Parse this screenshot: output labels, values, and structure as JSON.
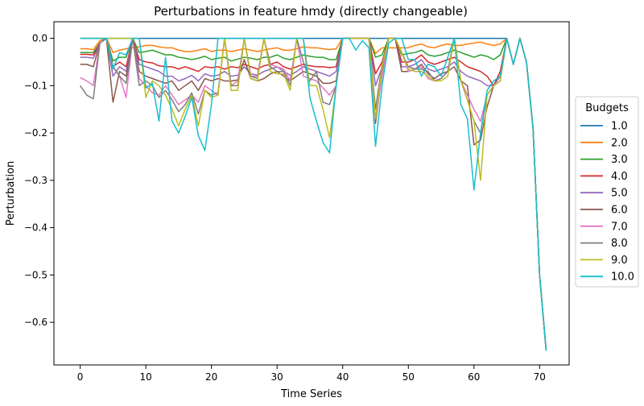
{
  "chart_data": {
    "type": "line",
    "title": "Perturbations in feature hmdy (directly changeable)",
    "xlabel": "Time Series",
    "ylabel": "Perturbation",
    "xlim": [
      -4,
      74.5
    ],
    "ylim": [
      -0.69,
      0.035
    ],
    "x_ticks": [
      0,
      10,
      20,
      30,
      40,
      50,
      60,
      70
    ],
    "y_ticks": [
      0.0,
      -0.1,
      -0.2,
      -0.3,
      -0.4,
      -0.5,
      -0.6
    ],
    "y_tick_labels": [
      "0.0",
      "−0.1",
      "−0.2",
      "−0.3",
      "−0.4",
      "−0.5",
      "−0.6"
    ],
    "grid": false,
    "legend": {
      "title": "Budgets",
      "placement": "right"
    },
    "x": [
      0,
      1,
      2,
      3,
      4,
      5,
      6,
      7,
      8,
      9,
      10,
      11,
      12,
      13,
      14,
      15,
      16,
      17,
      18,
      19,
      20,
      21,
      22,
      23,
      24,
      25,
      26,
      27,
      28,
      29,
      30,
      31,
      32,
      33,
      34,
      35,
      36,
      37,
      38,
      39,
      40,
      41,
      42,
      43,
      44,
      45,
      46,
      47,
      48,
      49,
      50,
      51,
      52,
      53,
      54,
      55,
      56,
      57,
      58,
      59,
      60,
      61,
      62,
      63,
      64,
      65,
      66,
      67,
      68,
      69,
      70,
      71
    ],
    "series": [
      {
        "name": "1.0",
        "color": "#1f77b4",
        "values": [
          0,
          0,
          0,
          0,
          0,
          0,
          0,
          0,
          0,
          0,
          0,
          0,
          0,
          0,
          0,
          0,
          0,
          0,
          0,
          0,
          0,
          0,
          0,
          0,
          0,
          0,
          0,
          0,
          0,
          0,
          0,
          0,
          0,
          0,
          0,
          0,
          0,
          0,
          0,
          0,
          0,
          0,
          0,
          0,
          0,
          0,
          0,
          0,
          0,
          0,
          0,
          0,
          0,
          0,
          0,
          0,
          0,
          0,
          0,
          0,
          0,
          0,
          0,
          0,
          0,
          0,
          -0.055,
          0,
          -0.05,
          -0.19,
          -0.5,
          -0.66
        ]
      },
      {
        "name": "2.0",
        "color": "#ff7f0e",
        "values": [
          -0.022,
          -0.022,
          -0.024,
          -0.005,
          0,
          -0.03,
          -0.025,
          -0.022,
          -0.02,
          -0.018,
          -0.015,
          -0.015,
          -0.018,
          -0.02,
          -0.02,
          -0.025,
          -0.028,
          -0.028,
          -0.025,
          -0.022,
          -0.028,
          -0.025,
          -0.025,
          -0.028,
          -0.025,
          -0.022,
          -0.025,
          -0.028,
          -0.025,
          -0.022,
          -0.02,
          -0.025,
          -0.025,
          -0.022,
          -0.018,
          -0.02,
          -0.02,
          -0.022,
          -0.024,
          -0.022,
          0,
          0,
          0,
          0,
          0,
          -0.032,
          -0.02,
          -0.02,
          -0.02,
          -0.02,
          -0.02,
          -0.015,
          -0.012,
          -0.018,
          -0.02,
          -0.015,
          -0.012,
          -0.015,
          -0.015,
          -0.012,
          -0.01,
          -0.008,
          -0.012,
          -0.015,
          -0.012,
          0,
          -0.055,
          0,
          -0.05,
          -0.19,
          -0.5,
          -0.66
        ]
      },
      {
        "name": "3.0",
        "color": "#2ca02c",
        "values": [
          -0.03,
          -0.03,
          -0.03,
          -0.01,
          0,
          -0.048,
          -0.04,
          -0.04,
          0,
          -0.03,
          -0.028,
          -0.025,
          -0.03,
          -0.035,
          -0.035,
          -0.04,
          -0.042,
          -0.045,
          -0.042,
          -0.038,
          -0.045,
          -0.042,
          -0.04,
          -0.048,
          -0.044,
          -0.04,
          -0.042,
          -0.045,
          -0.04,
          -0.04,
          -0.035,
          -0.042,
          -0.045,
          -0.04,
          -0.035,
          -0.038,
          -0.04,
          -0.04,
          -0.045,
          -0.045,
          0,
          0,
          0,
          0,
          0,
          -0.04,
          -0.035,
          0,
          0,
          -0.035,
          -0.032,
          -0.03,
          -0.025,
          -0.035,
          -0.038,
          -0.035,
          -0.03,
          -0.025,
          -0.03,
          -0.035,
          -0.04,
          -0.035,
          -0.038,
          -0.045,
          -0.035,
          0,
          -0.055,
          0,
          -0.05,
          -0.19,
          -0.5,
          -0.66
        ]
      },
      {
        "name": "4.0",
        "color": "#d62728",
        "values": [
          -0.034,
          -0.034,
          -0.035,
          -0.01,
          0,
          -0.06,
          -0.05,
          -0.06,
          0,
          -0.045,
          -0.05,
          -0.052,
          -0.058,
          -0.06,
          -0.06,
          -0.065,
          -0.06,
          -0.065,
          -0.07,
          -0.06,
          -0.062,
          -0.06,
          -0.065,
          -0.06,
          -0.062,
          -0.055,
          -0.06,
          -0.065,
          -0.058,
          -0.055,
          -0.05,
          -0.06,
          -0.065,
          -0.06,
          -0.055,
          -0.058,
          -0.06,
          -0.06,
          -0.062,
          -0.06,
          0,
          0,
          0,
          0,
          0,
          -0.075,
          -0.05,
          0,
          0,
          -0.05,
          -0.05,
          -0.045,
          -0.035,
          -0.05,
          -0.055,
          -0.05,
          -0.045,
          -0.04,
          -0.05,
          -0.06,
          -0.065,
          -0.07,
          -0.08,
          -0.1,
          -0.07,
          0,
          -0.055,
          0,
          -0.05,
          -0.19,
          -0.5,
          -0.66
        ]
      },
      {
        "name": "5.0",
        "color": "#9467bd",
        "values": [
          -0.04,
          -0.04,
          -0.042,
          -0.01,
          0,
          -0.08,
          -0.06,
          -0.07,
          0,
          -0.055,
          -0.06,
          -0.065,
          -0.07,
          -0.08,
          -0.08,
          -0.09,
          -0.085,
          -0.078,
          -0.09,
          -0.075,
          -0.08,
          -0.078,
          -0.07,
          -0.08,
          -0.078,
          -0.06,
          -0.075,
          -0.078,
          -0.07,
          -0.065,
          -0.06,
          -0.07,
          -0.078,
          -0.07,
          -0.06,
          -0.065,
          -0.07,
          -0.075,
          -0.08,
          -0.07,
          0,
          0,
          0,
          0,
          0,
          -0.1,
          -0.06,
          0,
          0,
          -0.06,
          -0.06,
          -0.055,
          -0.045,
          -0.065,
          -0.07,
          -0.065,
          -0.06,
          -0.05,
          -0.07,
          -0.08,
          -0.085,
          -0.09,
          -0.1,
          -0.1,
          -0.08,
          0,
          -0.055,
          0,
          -0.05,
          -0.19,
          -0.5,
          -0.66
        ]
      },
      {
        "name": "6.0",
        "color": "#8c564b",
        "values": [
          -0.055,
          -0.055,
          -0.06,
          -0.01,
          0,
          -0.135,
          -0.07,
          -0.08,
          0,
          -0.07,
          -0.08,
          -0.085,
          -0.09,
          -0.095,
          -0.09,
          -0.11,
          -0.1,
          -0.09,
          -0.11,
          -0.085,
          -0.09,
          -0.085,
          -0.09,
          -0.09,
          -0.088,
          -0.045,
          -0.085,
          -0.09,
          -0.085,
          -0.075,
          -0.07,
          -0.08,
          -0.09,
          -0.08,
          -0.07,
          -0.075,
          -0.08,
          -0.095,
          -0.095,
          -0.09,
          0,
          0,
          0,
          0,
          0,
          -0.18,
          -0.07,
          0,
          0,
          -0.07,
          -0.07,
          -0.065,
          -0.055,
          -0.075,
          -0.085,
          -0.075,
          -0.07,
          -0.06,
          -0.09,
          -0.1,
          -0.225,
          -0.215,
          -0.145,
          -0.1,
          -0.09,
          0,
          -0.055,
          0,
          -0.05,
          -0.19,
          -0.5,
          -0.66
        ]
      },
      {
        "name": "7.0",
        "color": "#e377c2",
        "values": [
          -0.083,
          -0.09,
          -0.1,
          -0.01,
          0,
          -0.06,
          -0.08,
          -0.125,
          0,
          -0.085,
          -0.1,
          -0.115,
          -0.12,
          -0.1,
          -0.12,
          -0.14,
          -0.13,
          -0.12,
          -0.135,
          -0.1,
          -0.11,
          -0.12,
          0,
          -0.1,
          -0.09,
          0,
          -0.08,
          -0.08,
          0,
          -0.055,
          -0.06,
          -0.065,
          -0.09,
          0,
          -0.08,
          -0.085,
          -0.09,
          -0.105,
          -0.12,
          -0.1,
          0,
          0,
          0,
          0,
          0,
          -0.17,
          -0.08,
          0,
          0,
          -0.03,
          -0.07,
          -0.065,
          -0.06,
          -0.085,
          -0.09,
          -0.085,
          -0.07,
          0,
          -0.09,
          -0.12,
          -0.15,
          -0.175,
          -0.12,
          -0.1,
          -0.09,
          0,
          -0.055,
          0,
          -0.05,
          -0.19,
          -0.5,
          -0.66
        ]
      },
      {
        "name": "8.0",
        "color": "#7f7f7f",
        "values": [
          -0.1,
          -0.12,
          -0.128,
          -0.01,
          0,
          -0.06,
          -0.08,
          -0.095,
          0,
          -0.1,
          -0.09,
          -0.1,
          -0.125,
          -0.11,
          -0.13,
          -0.155,
          -0.14,
          -0.115,
          -0.16,
          -0.11,
          -0.12,
          -0.115,
          0,
          -0.1,
          -0.1,
          0,
          -0.08,
          -0.085,
          0,
          -0.06,
          -0.07,
          -0.07,
          -0.1,
          0,
          -0.05,
          -0.09,
          -0.07,
          -0.135,
          -0.14,
          -0.1,
          0,
          0,
          0,
          0,
          0,
          -0.15,
          -0.055,
          0,
          0,
          -0.03,
          -0.06,
          -0.065,
          -0.065,
          -0.07,
          -0.09,
          -0.085,
          -0.07,
          0,
          -0.09,
          -0.13,
          -0.175,
          -0.2,
          -0.12,
          -0.1,
          -0.09,
          0,
          -0.055,
          0,
          -0.05,
          -0.19,
          -0.5,
          -0.66
        ]
      },
      {
        "name": "9.0",
        "color": "#bcbd22",
        "values": [
          0,
          0,
          0,
          0,
          0,
          0,
          0,
          0,
          0,
          0,
          -0.125,
          -0.09,
          -0.1,
          -0.12,
          -0.15,
          -0.185,
          -0.15,
          -0.12,
          -0.185,
          -0.11,
          -0.125,
          -0.12,
          0,
          -0.11,
          -0.11,
          0,
          -0.085,
          -0.09,
          0,
          -0.07,
          -0.075,
          -0.075,
          -0.11,
          0,
          0,
          -0.1,
          -0.1,
          -0.15,
          -0.21,
          -0.1,
          0,
          0,
          0,
          0,
          0,
          -0.17,
          -0.06,
          0,
          0,
          -0.03,
          -0.065,
          -0.07,
          -0.07,
          -0.08,
          -0.09,
          -0.09,
          -0.08,
          0,
          -0.09,
          -0.13,
          -0.175,
          -0.3,
          -0.12,
          -0.1,
          -0.09,
          0,
          -0.055,
          0,
          -0.05,
          -0.19,
          -0.5,
          -0.66
        ]
      },
      {
        "name": "10.0",
        "color": "#17becf",
        "values": [
          0,
          0,
          0,
          0,
          0,
          -0.065,
          -0.03,
          -0.035,
          0,
          0,
          -0.105,
          -0.095,
          -0.175,
          -0.04,
          -0.175,
          -0.2,
          -0.165,
          -0.125,
          -0.205,
          -0.237,
          -0.14,
          0,
          0,
          0,
          0,
          0,
          0,
          0,
          0,
          0,
          0,
          0,
          0,
          0,
          0,
          -0.125,
          -0.175,
          -0.22,
          -0.242,
          -0.1,
          0,
          0,
          -0.025,
          -0.005,
          -0.02,
          -0.228,
          -0.1,
          -0.01,
          0,
          0,
          -0.045,
          -0.045,
          -0.08,
          -0.055,
          -0.06,
          -0.08,
          -0.04,
          0,
          -0.14,
          -0.17,
          -0.32,
          -0.2,
          -0.11,
          -0.09,
          -0.08,
          0,
          -0.055,
          0,
          -0.05,
          -0.19,
          -0.5,
          -0.66
        ]
      }
    ]
  }
}
